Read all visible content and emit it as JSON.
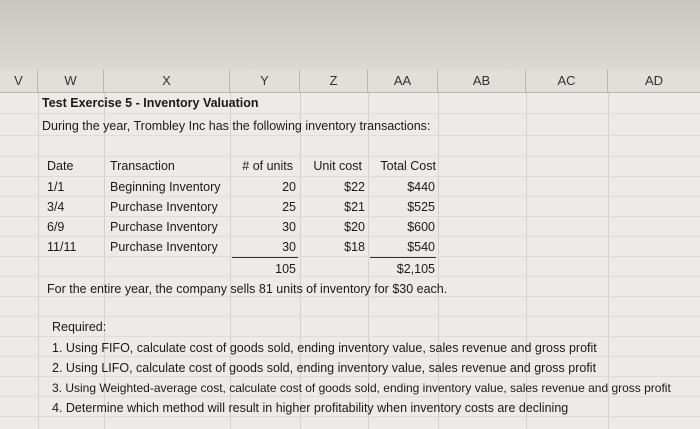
{
  "columns": [
    "V",
    "W",
    "X",
    "Y",
    "Z",
    "AA",
    "AB",
    "AC",
    "AD"
  ],
  "title": "Test Exercise 5 - Inventory Valuation",
  "intro": "During the year, Trombley Inc has the following inventory transactions:",
  "table": {
    "headers": [
      "Date",
      "Transaction",
      "# of units",
      "Unit cost",
      "Total Cost"
    ],
    "rows": [
      [
        "1/1",
        "Beginning Inventory",
        "20",
        "$22",
        "$440"
      ],
      [
        "3/4",
        "Purchase Inventory",
        "25",
        "$21",
        "$525"
      ],
      [
        "6/9",
        "Purchase Inventory",
        "30",
        "$20",
        "$600"
      ],
      [
        "11/11",
        "Purchase Inventory",
        "30",
        "$18",
        "$540"
      ]
    ],
    "total_units": "105",
    "total_cost": "$2,105"
  },
  "sales_note": "For the entire year, the company sells 81 units of inventory for $30 each.",
  "required": {
    "label": "Required:",
    "items": [
      "1. Using FIFO, calculate cost of goods sold, ending inventory value, sales revenue and gross profit",
      "2. Using LIFO, calculate cost of goods sold, ending inventory value, sales revenue and gross profit",
      "3. Using Weighted-average cost, calculate cost of goods sold, ending inventory value, sales revenue and gross profit",
      "4. Determine which method will result in higher profitability when inventory costs are declining"
    ]
  }
}
